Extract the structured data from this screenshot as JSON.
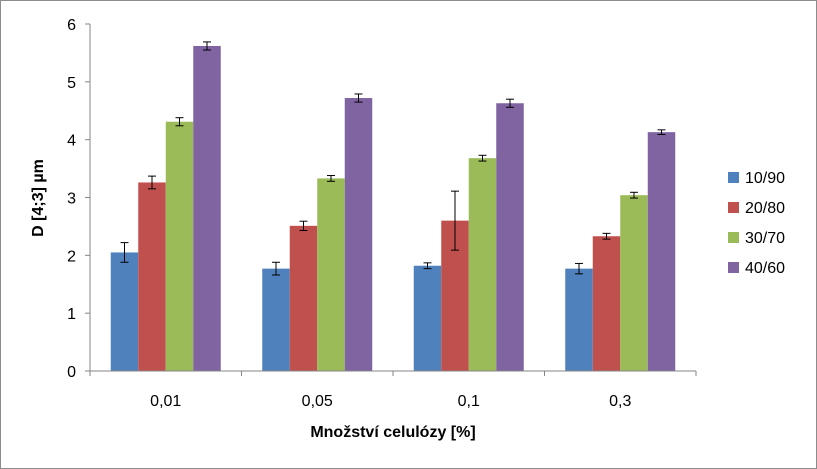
{
  "chart_data": {
    "type": "bar",
    "title": "",
    "xlabel": "Množství celulózy [%]",
    "ylabel": "D [4;3] µm",
    "ylim": [
      0,
      6
    ],
    "yticks": [
      "0",
      "1",
      "2",
      "3",
      "4",
      "5",
      "6"
    ],
    "categories": [
      "0,01",
      "0,05",
      "0,1",
      "0,3"
    ],
    "grid": false,
    "legend_position": "right",
    "series": [
      {
        "name": "10/90",
        "color": "#4f81bd",
        "values": [
          2.05,
          1.77,
          1.82,
          1.77
        ],
        "errors": [
          0.17,
          0.11,
          0.05,
          0.09
        ]
      },
      {
        "name": "20/80",
        "color": "#c0504d",
        "values": [
          3.26,
          2.51,
          2.6,
          2.33
        ],
        "errors": [
          0.11,
          0.08,
          0.51,
          0.05
        ]
      },
      {
        "name": "30/70",
        "color": "#9bbb59",
        "values": [
          4.31,
          3.33,
          3.68,
          3.04
        ],
        "errors": [
          0.07,
          0.05,
          0.05,
          0.05
        ]
      },
      {
        "name": "40/60",
        "color": "#8064a2",
        "values": [
          5.62,
          4.72,
          4.63,
          4.13
        ],
        "errors": [
          0.07,
          0.07,
          0.07,
          0.04
        ]
      }
    ]
  }
}
